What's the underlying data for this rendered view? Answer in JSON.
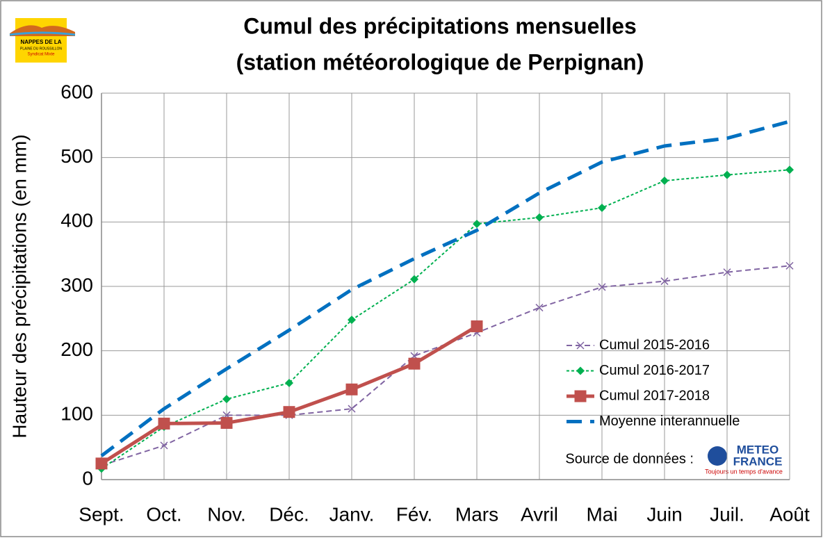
{
  "chart_data": {
    "type": "line",
    "title": [
      "Cumul des précipitations mensuelles",
      "(station météorologique de Perpignan)"
    ],
    "ylabel": "Hauteur des précipitations (en mm)",
    "categories": [
      "Sept.",
      "Oct.",
      "Nov.",
      "Déc.",
      "Janv.",
      "Fév.",
      "Mars",
      "Avril",
      "Mai",
      "Juin",
      "Juil.",
      "Août"
    ],
    "ylim": [
      0,
      600
    ],
    "yticks": [
      0,
      100,
      200,
      300,
      400,
      500,
      600
    ],
    "grid": true,
    "legend": "lower right",
    "series": [
      {
        "name": "Cumul 2015-2016",
        "color": "#8064a2",
        "dash": "8 5",
        "width": 2,
        "marker": "x",
        "values": [
          22,
          53,
          100,
          100,
          110,
          192,
          228,
          267,
          299,
          308,
          322,
          332
        ]
      },
      {
        "name": "Cumul 2016-2017",
        "color": "#00b050",
        "dash": "4 3",
        "width": 2,
        "marker": "diamond",
        "values": [
          17,
          82,
          125,
          150,
          248,
          311,
          397,
          407,
          422,
          464,
          473,
          481
        ]
      },
      {
        "name": "Cumul 2017-2018",
        "color": "#c0504d",
        "dash": "",
        "width": 5,
        "marker": "square",
        "values": [
          25,
          87,
          88,
          105,
          140,
          180,
          238,
          null,
          null,
          null,
          null,
          null
        ]
      },
      {
        "name": "Moyenne interannuelle",
        "color": "#0070c0",
        "dash": "22 12",
        "width": 5,
        "marker": "none",
        "values": [
          37,
          110,
          172,
          232,
          295,
          343,
          387,
          445,
          493,
          518,
          530,
          556
        ]
      }
    ],
    "annotations": {
      "source": "Source de données :",
      "logo_top": "NAPPES DE LA",
      "logo_mid": "PLAINE DU ROUSSILLON",
      "logo_bottom": "Syndicat Mixte",
      "meteo_1": "METEO",
      "meteo_2": "FRANCE",
      "meteo_tag": "Toujours un temps d'avance"
    }
  }
}
